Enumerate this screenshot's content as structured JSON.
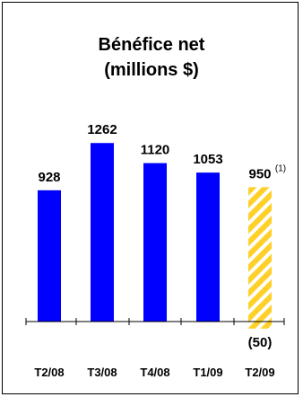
{
  "chart_data": {
    "type": "bar",
    "title_line1": "Bénéfice net",
    "title_line2": "(millions $)",
    "categories": [
      "T2/08",
      "T3/08",
      "T4/08",
      "T1/09",
      "T2/09"
    ],
    "values": [
      928,
      1262,
      1120,
      1053,
      -50
    ],
    "value_labels": [
      "928",
      "1262",
      "1120",
      "1053",
      "(50)"
    ],
    "annotation": {
      "category": "T2/09",
      "value": 950,
      "label": "950",
      "footnote": "(1)",
      "style": "hatched"
    },
    "xlabel": "",
    "ylabel": "",
    "grid": false,
    "legend": "none",
    "colors": {
      "bar": "#0000ff",
      "hatch_fill": "#ffd028",
      "hatch_stripe": "#ffffff",
      "axis": "#000000"
    }
  }
}
